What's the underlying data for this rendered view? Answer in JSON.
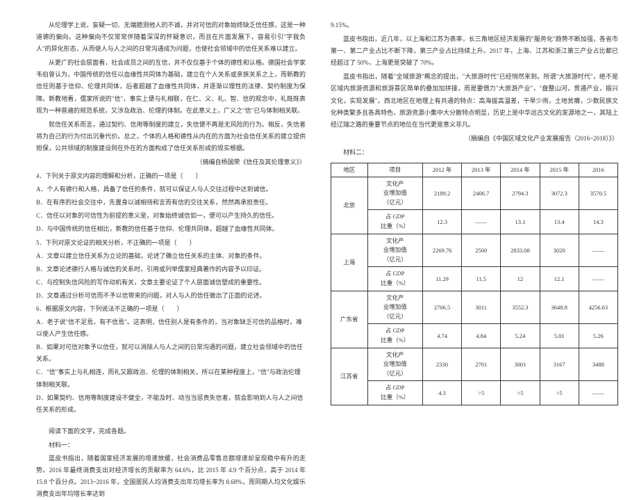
{
  "left": {
    "p1": "从伦理学上说，妄疑一切、无端臆测他人的不诚，并对可信的对象始终缺乏信任感，这是一种道德的偏向。这种偏向不仅常常伴随着深深的怀疑意识，而且在片面发展下，容易引引\"字我负人\"的异化形态，从而使人与人之间的日常沟通成为问题，也使社会领域中的信任关系难以建立。",
    "p2": "从更广的社会层面看，社会成员之间的互信，并不仅仅基于个体的德性和认格。德国社会学家韦伯曾认为，中国传统的信任以血缘性共同体为基础，建立在个人关系或亲族关系之上，而新教的信任则基于信仰、伦理共同体，后者超越了血缘性共同体，并逐渐以理性的法律、契约制度为保障。新教地看，儒家所说的\"信\"，事实上便与礼相联，在仁、义、礼、智、信的观念中，礼既既表现为一种普遍的规范系统，又涉及政治、伦理的体制。在此意义上，广义之\"信\"已与体制相关联。",
    "p3": "就信任关系而言，通过契约、信用等制度的建立，失信便不再是无风险的行为。相反，失信者将为自己的行为付出沉重代价。总之，个体的人格和德性从内在的方面为社会信任关系的建立提供担保，公共领域的制度建设则在外在的方面构成了信任关系形成的现实根据。",
    "cite1": "（摘编自杨国荣《信任及其伦理意义》）",
    "q4": "4．下列关于原文内容的理解和分析，正确的一项是（　　）",
    "q4a": "A．个人有德行和人格，具备了信任的条件，就可以保证人与人交往过程中达到诚信。",
    "q4b": "B．在有序的社会交往中，先置身以诚相待和言而有信的交往关系，然然再承担责任。",
    "q4c": "C．信任以对象的可信性为前提的意义是，对象始终诚信如一，便可以产生持久的信任。",
    "q4d": "D．与中国传统的信任相比，新教的信任基于信仰、伦理共同体，超越了血缘性共同体。",
    "q5": "5．下列对原文论证的相关分析，不正确的一项是（　　）",
    "q5a": "A．文章以建立信任关系为立论的基础，论述了确立信任关系的主体、对象的条件。",
    "q5b": "B．文章论述德行人格与诚信的关系时，引用或列举儒家经典著作的内容予以印证。",
    "q5c": "C．与控制失信风险的写作动机有关，文章主要论证了个人层面诚信塑成的重要性。",
    "q5d": "D．文章通过分析可信而不予以信带来的问题，对人与人的信任做出了正面的论述。",
    "q6": "6．根据原文内容，下列说法不正确的一项是（　　）",
    "q6a": "A．老子说\"信不足焉，有不信焉\"。这表明，信任别人是有条件的，当对象缺乏可信的品格时，难以使人产生信任感。",
    "q6b": "B．如果对可信对象予以信任，就可以消除人与人之间的日常沟通的问题，建立社会领域中的信任关系。",
    "q6c": "C．\"信\"事实上与礼相连，而礼又跟政治、伦理的体制相关，所以在某种程度上，\"信\"与政治伦理体制相关联。",
    "q6d": "D．如果契约、信用等制度建设不健全，不能及时、动当当惩责失信者，就会影响到人与人之间信任关系的形成。",
    "read": "阅读下面的文字，完成各题。",
    "mat1": "材料一：",
    "m1p1": "蓝皮书指出，随着国家经济发展的增速放缓，社会消费品零售总额增速却呈现稳中有升的走势。2016 年最终消费支出对经济增长的贡献率为 64.6%，比 2015 年 4.9 个百分点，高于 2014 年 15.8 个百分点。2013~2016 年，全国居民人均消费支出年均增长率为 8.68%，而同期人均文化娱乐消费支出年均增长率达到"
  },
  "right": {
    "pct": "9.15%。",
    "p1": "蓝皮书指出，近几年，以上海和江苏为表率，长三角地区经济发展的\"服务化\"趋势不断加强，各省市第一、第二产业占比不断下降，第三产业占比持续上升。2017 年，上海、江苏和浙江第三产业占比都已经超过了 50%，上海更是突破了 70%。",
    "p2": "蓝皮书指出，随着\"全域旅游\"概念的提出，\"大旅游时代\"已经悄然来到。所谓\"大旅游时代\"，绝不是区域内旅游资源和旅游景区简单的叠加加拼接，而是要借力\"大旅游产业\"，\"盘整山河，贯通产业，振兴文化，实现发展\"。西北地区在地理上有共通的特点：高海拔高温差，干旱少雨，土地贫瘠，少数民族文化种类繁多且各具特色，旅游资源小集中大分散特点明显，历史上是中华远古文化的发源地之一，其陆上经辽瑞之路的重要节点的地位在当代更是意义非凡。",
    "cite2": "（摘编自《中国区域文化产业发展报告（2016~2018）》）",
    "mat2": "材料二：",
    "table": {
      "headers": [
        "地区",
        "项目",
        "2012 年",
        "2013 年",
        "2014 年",
        "2015 年",
        "2016"
      ],
      "row_labels": {
        "culture": "文化产\n业增加值\n（亿元）",
        "gdp": "占 GDP\n比重（%）"
      },
      "regions": [
        {
          "name": "北京",
          "culture": [
            "2189.2",
            "2406.7",
            "2794.3",
            "3072.3",
            "3570.5"
          ],
          "gdp": [
            "12.3",
            "——",
            "13.1",
            "13.4",
            "14.3"
          ]
        },
        {
          "name": "上海",
          "culture": [
            "2269.76",
            "2500",
            "2833.08",
            "3020",
            "——"
          ],
          "gdp": [
            "11.29",
            "11.5",
            "12",
            "12.1",
            "——"
          ]
        },
        {
          "name": "广东省",
          "culture": [
            "2706.5",
            "3011",
            "3552.3",
            "3648.8",
            "4256.63"
          ],
          "gdp": [
            "4.74",
            "4.84",
            "5.24",
            "5.01",
            "5.26"
          ]
        },
        {
          "name": "江苏省",
          "culture": [
            "2330",
            "2701",
            "3001",
            "3167",
            "3488"
          ],
          "gdp": [
            "4.3",
            ">5",
            ">5",
            ">5",
            "——"
          ]
        }
      ]
    }
  },
  "style": {
    "font_size_body": 9,
    "font_size_table": 8.5,
    "text_color": "#333333",
    "border_color": "#333333",
    "bg_color": "#ffffff"
  }
}
